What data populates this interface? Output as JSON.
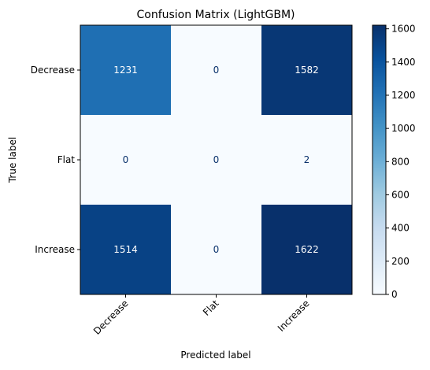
{
  "chart_data": {
    "type": "heatmap",
    "title": "Confusion Matrix (LightGBM)",
    "xlabel": "Predicted label",
    "ylabel": "True label",
    "x_categories": [
      "Decrease",
      "Flat",
      "Increase"
    ],
    "y_categories": [
      "Decrease",
      "Flat",
      "Increase"
    ],
    "values": [
      [
        1231,
        0,
        1582
      ],
      [
        0,
        0,
        2
      ],
      [
        1514,
        0,
        1622
      ]
    ],
    "colormap": "Blues",
    "value_range": [
      0,
      1622
    ],
    "colorbar_ticks": [
      0,
      200,
      400,
      600,
      800,
      1000,
      1200,
      1400,
      1600
    ],
    "colorbar_tick_labels": [
      "0",
      "200",
      "400",
      "600",
      "800",
      "1000",
      "1200",
      "1400",
      "1600"
    ],
    "x_tick_rotation_deg": 45,
    "grid": false,
    "colorbar": "right",
    "text_color_light": "#ffffff",
    "text_color_dark": "#08306b"
  }
}
